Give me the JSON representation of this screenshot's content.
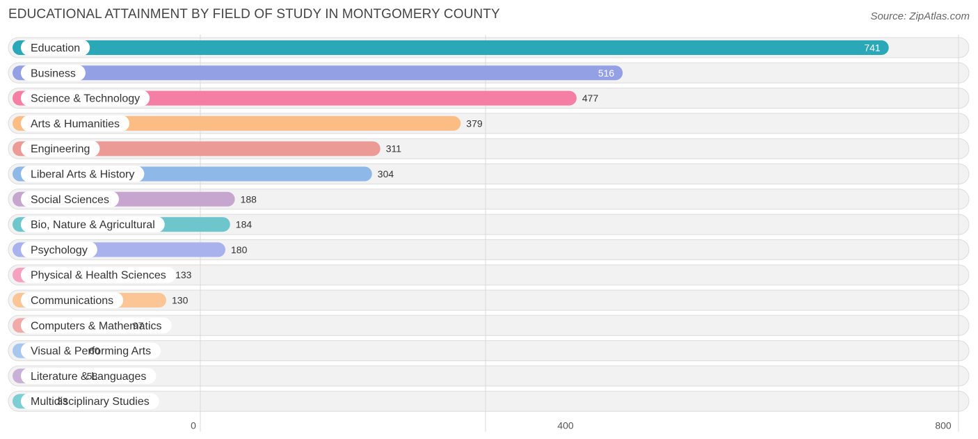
{
  "header": {
    "title": "EDUCATIONAL ATTAINMENT BY FIELD OF STUDY IN MONTGOMERY COUNTY",
    "source": "Source: ZipAtlas.com"
  },
  "chart_data": {
    "type": "bar",
    "orientation": "horizontal",
    "title": "EDUCATIONAL ATTAINMENT BY FIELD OF STUDY IN MONTGOMERY COUNTY",
    "xlabel": "",
    "ylabel": "",
    "xlim": [
      0,
      800
    ],
    "ticks": [
      0,
      400,
      800
    ],
    "tick_labels": [
      "0",
      "400",
      "800"
    ],
    "categories": [
      "Education",
      "Business",
      "Science & Technology",
      "Arts & Humanities",
      "Engineering",
      "Liberal Arts & History",
      "Social Sciences",
      "Bio, Nature & Agricultural",
      "Psychology",
      "Physical & Health Sciences",
      "Communications",
      "Computers & Mathematics",
      "Visual & Performing Arts",
      "Literature & Languages",
      "Multidisciplinary Studies"
    ],
    "values": [
      741,
      516,
      477,
      379,
      311,
      304,
      188,
      184,
      180,
      133,
      130,
      97,
      60,
      58,
      33
    ],
    "value_labels": [
      "741",
      "516",
      "477",
      "379",
      "311",
      "304",
      "188",
      "184",
      "180",
      "133",
      "130",
      "97",
      "60",
      "58",
      "33"
    ],
    "colors": [
      "#2aa8b8",
      "#93a0e4",
      "#f47ea4",
      "#fbbd84",
      "#ec9a96",
      "#8db8e8",
      "#c6a6cf",
      "#6ec6cd",
      "#a9b2ec",
      "#f6a1bf",
      "#fbc596",
      "#f0aaa7",
      "#a8c7ef",
      "#c9b0d6",
      "#7ccdd4"
    ],
    "grid": true
  }
}
